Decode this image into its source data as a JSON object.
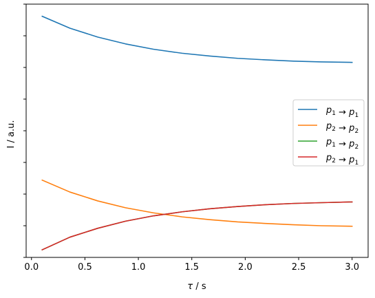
{
  "chart_data": {
    "type": "line",
    "title": "",
    "xlabel_symbol": "τ",
    "xlabel_unit": " / s",
    "ylabel": "I / a.u.",
    "xlim": [
      -0.05,
      3.15
    ],
    "ylim": [
      0.0,
      1.0
    ],
    "grid": false,
    "legend_position": "center-right",
    "x_ticks": [
      {
        "value": 0.0,
        "label": "0.0"
      },
      {
        "value": 0.5,
        "label": "0.5"
      },
      {
        "value": 1.0,
        "label": "1.0"
      },
      {
        "value": 1.5,
        "label": "1.5"
      },
      {
        "value": 2.0,
        "label": "2.0"
      },
      {
        "value": 2.5,
        "label": "2.5"
      },
      {
        "value": 3.0,
        "label": "3.0"
      }
    ],
    "y_ticks": [
      0.0,
      0.125,
      0.25,
      0.375,
      0.5,
      0.625,
      0.75,
      0.875,
      1.0
    ],
    "x": [
      0.1,
      0.36,
      0.62,
      0.88,
      1.14,
      1.41,
      1.67,
      1.93,
      2.19,
      2.45,
      2.71,
      3.0
    ],
    "series": [
      {
        "name_from": "p1",
        "name_to": "p1",
        "color": "#1f77b4",
        "values": [
          0.952,
          0.905,
          0.87,
          0.843,
          0.822,
          0.806,
          0.795,
          0.786,
          0.78,
          0.775,
          0.772,
          0.77
        ]
      },
      {
        "name_from": "p2",
        "name_to": "p2",
        "color": "#ff7f0e",
        "values": [
          0.305,
          0.258,
          0.223,
          0.196,
          0.176,
          0.16,
          0.149,
          0.14,
          0.134,
          0.129,
          0.125,
          0.123
        ]
      },
      {
        "name_from": "p1",
        "name_to": "p2",
        "color": "#2ca02c",
        "values": [
          0.03,
          0.08,
          0.115,
          0.143,
          0.164,
          0.18,
          0.192,
          0.201,
          0.208,
          0.213,
          0.216,
          0.219
        ]
      },
      {
        "name_from": "p2",
        "name_to": "p1",
        "color": "#d62728",
        "values": [
          0.03,
          0.08,
          0.115,
          0.143,
          0.164,
          0.18,
          0.192,
          0.201,
          0.208,
          0.213,
          0.216,
          0.219
        ]
      }
    ]
  }
}
